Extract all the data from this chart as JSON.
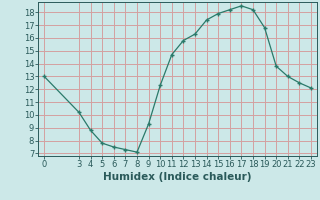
{
  "xlabel": "Humidex (Indice chaleur)",
  "background_color": "#cce8e8",
  "grid_color": "#d4a0a0",
  "line_color": "#2a7a6a",
  "marker_color": "#2a7a6a",
  "x_values": [
    0,
    3,
    4,
    5,
    6,
    7,
    8,
    9,
    10,
    11,
    12,
    13,
    14,
    15,
    16,
    17,
    18,
    19,
    20,
    21,
    22,
    23
  ],
  "y_values": [
    13,
    10.2,
    8.8,
    7.8,
    7.5,
    7.3,
    7.1,
    9.3,
    12.3,
    14.7,
    15.8,
    16.3,
    17.4,
    17.9,
    18.2,
    18.5,
    18.2,
    16.8,
    13.8,
    13.0,
    12.5,
    12.1
  ],
  "xlim": [
    -0.5,
    23.5
  ],
  "ylim": [
    6.8,
    18.8
  ],
  "yticks": [
    7,
    8,
    9,
    10,
    11,
    12,
    13,
    14,
    15,
    16,
    17,
    18
  ],
  "xticks": [
    0,
    3,
    4,
    5,
    6,
    7,
    8,
    9,
    10,
    11,
    12,
    13,
    14,
    15,
    16,
    17,
    18,
    19,
    20,
    21,
    22,
    23
  ],
  "fontsize_tick": 6.0,
  "fontsize_xlabel": 7.5,
  "tick_color": "#2a5a5a",
  "spine_color": "#2a5a5a"
}
